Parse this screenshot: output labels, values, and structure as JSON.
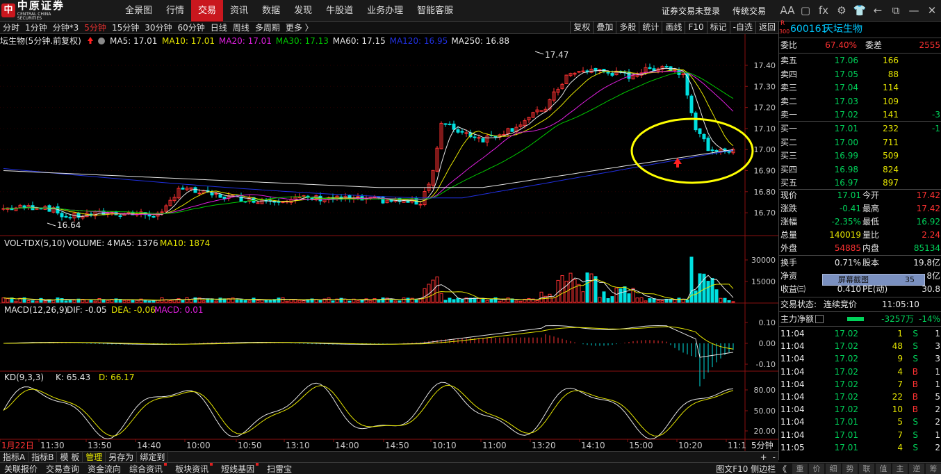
{
  "app": {
    "logo_cn": "中原证券",
    "logo_en": "CENTRAL CHINA SECURITIES",
    "logo_mark": "中"
  },
  "menu": [
    "全景图",
    "行情",
    "交易",
    "资讯",
    "数据",
    "发现",
    "牛股道",
    "业务办理",
    "智能客服"
  ],
  "menu_active": 2,
  "top_right": {
    "login": "证券交易未登录",
    "mode": "传统交易",
    "icons": [
      "font-size-icon",
      "window-icon",
      "fx-icon",
      "gear-icon",
      "shirt-icon",
      "back-icon",
      "restore-icon",
      "minimize-icon",
      "close-icon"
    ],
    "icon_glyphs": [
      "AA",
      "▢",
      "fx",
      "⚙",
      "👕",
      "←",
      "⧉",
      "—",
      "✕"
    ]
  },
  "periods": [
    "分时",
    "1分钟",
    "分钟*3",
    "5分钟",
    "15分钟",
    "30分钟",
    "60分钟",
    "日线",
    "周线",
    "多周期",
    "更多 〉"
  ],
  "period_active": 3,
  "right_tools": [
    "复权",
    "叠加",
    "多股",
    "统计",
    "画线",
    "F10",
    "标记",
    "-自选",
    "返回"
  ],
  "kline": {
    "title": "坛生物(5分钟.前复权)",
    "ma": [
      {
        "t": "MA5: 17.01",
        "c": "#e6e6e6"
      },
      {
        "t": "MA10: 17.01",
        "c": "#e6e600"
      },
      {
        "t": "MA20: 17.01",
        "c": "#e020e0"
      },
      {
        "t": "MA30: 17.13",
        "c": "#00c800"
      },
      {
        "t": "MA60: 17.15",
        "c": "#e6e6e6"
      },
      {
        "t": "MA120: 16.95",
        "c": "#2030e0"
      },
      {
        "t": "MA250: 16.88",
        "c": "#e6e6e6"
      }
    ],
    "y_labels": [
      "17.40",
      "17.30",
      "17.20",
      "17.10",
      "17.00",
      "16.90",
      "16.80",
      "16.70"
    ],
    "max_label": "17.47",
    "min_label": "16.64"
  },
  "volume": {
    "title": "VOL-TDX(5,10)",
    "items": [
      "VOLUME: 4",
      "MA5: 1376",
      "MA10: 1874"
    ],
    "y_labels": [
      "30000",
      "15000"
    ]
  },
  "macd": {
    "title": "MACD(12,26,9)",
    "dif": "DIF: -0.05",
    "dea": "DEA: -0.06",
    "macd": "MACD: 0.01",
    "y_labels": [
      "0.10",
      "0.00",
      "-0.10"
    ]
  },
  "kd": {
    "title": "KD(9,3,3)",
    "k": "K: 65.43",
    "d": "D: 66.17",
    "y_labels": [
      "80.00",
      "50.00",
      "20.00"
    ]
  },
  "time_axis": {
    "labels": [
      "1月22日",
      "11:30",
      "13:50",
      "14:40",
      "10:00",
      "10:50",
      "13:10",
      "14:00",
      "14:50",
      "10:10",
      "11:00",
      "13:20",
      "14:10",
      "15:00",
      "10:20",
      "11:1"
    ],
    "period": "5分钟",
    "zoom": [
      "+",
      "-"
    ]
  },
  "quote": {
    "code": "600161",
    "name": "天坛生物",
    "badge_r": "R",
    "badge_300": "300",
    "weibi_label": "委比",
    "weibi": "67.40%",
    "weicha_label": "委差",
    "weicha": "2555",
    "asks": [
      {
        "l": "卖五",
        "p": "17.06",
        "v": "166",
        "x": ""
      },
      {
        "l": "卖四",
        "p": "17.05",
        "v": "88",
        "x": ""
      },
      {
        "l": "卖三",
        "p": "17.04",
        "v": "114",
        "x": ""
      },
      {
        "l": "卖二",
        "p": "17.03",
        "v": "109",
        "x": ""
      },
      {
        "l": "卖一",
        "p": "17.02",
        "v": "141",
        "x": "-3"
      }
    ],
    "bids": [
      {
        "l": "买一",
        "p": "17.01",
        "v": "232",
        "x": "-1"
      },
      {
        "l": "买二",
        "p": "17.00",
        "v": "711",
        "x": ""
      },
      {
        "l": "买三",
        "p": "16.99",
        "v": "509",
        "x": ""
      },
      {
        "l": "买四",
        "p": "16.98",
        "v": "824",
        "x": ""
      },
      {
        "l": "买五",
        "p": "16.97",
        "v": "897",
        "x": ""
      }
    ],
    "stats": [
      {
        "a": "现价",
        "b": "17.01",
        "c": "今开",
        "d": "17.42"
      },
      {
        "a": "涨跌",
        "b": "-0.41",
        "c": "最高",
        "d": "17.42"
      },
      {
        "a": "涨幅",
        "b": "-2.35%",
        "c": "最低",
        "d": "16.92"
      },
      {
        "a": "总量",
        "b": "140019",
        "c": "量比",
        "d": "2.24"
      },
      {
        "a": "外盘",
        "b": "54885",
        "c": "内盘",
        "d": "85134"
      }
    ],
    "stats2": [
      {
        "a": "换手",
        "b": "0.71%",
        "c": "股本",
        "d": "19.8亿"
      },
      {
        "a": "净资",
        "b": "",
        "c": "",
        "d": "8亿"
      },
      {
        "a": "收益㈢",
        "b": "0.410",
        "c": "PE(动)",
        "d": "30.8"
      }
    ],
    "status_label": "交易状态:",
    "status": "连续竞价",
    "status_time": "11:05:10",
    "flow_label": "主力净额",
    "flow": "-3257万",
    "flow_pct": "-14%",
    "ticks": [
      {
        "t": "11:04",
        "p": "17.02",
        "v": "1",
        "s": "S",
        "n": "1"
      },
      {
        "t": "11:04",
        "p": "17.02",
        "v": "48",
        "s": "S",
        "n": "3"
      },
      {
        "t": "11:04",
        "p": "17.02",
        "v": "9",
        "s": "S",
        "n": "3"
      },
      {
        "t": "11:04",
        "p": "17.02",
        "v": "4",
        "s": "B",
        "n": "1"
      },
      {
        "t": "11:04",
        "p": "17.02",
        "v": "7",
        "s": "B",
        "n": "1"
      },
      {
        "t": "11:04",
        "p": "17.02",
        "v": "22",
        "s": "B",
        "n": "5"
      },
      {
        "t": "11:04",
        "p": "17.02",
        "v": "10",
        "s": "B",
        "n": "2"
      },
      {
        "t": "11:04",
        "p": "17.01",
        "v": "5",
        "s": "S",
        "n": "2"
      },
      {
        "t": "11:04",
        "p": "17.01",
        "v": "7",
        "s": "S",
        "n": "1"
      },
      {
        "t": "11:05",
        "p": "17.01",
        "v": "4",
        "s": "S",
        "n": "2"
      }
    ]
  },
  "popup": {
    "label": "屏幕截图",
    "value": "35"
  },
  "bottom_tabs": [
    "指标A",
    "指标B",
    "模 板",
    "管理",
    "另存为",
    "绑定到"
  ],
  "bottom_active": 3,
  "status_tabs": [
    "关联报价",
    "交易查询",
    "资金流向",
    "综合资讯",
    "板块资讯",
    "短线基因",
    "扫雷宝"
  ],
  "status_right": "图文F10 侧边栏 《",
  "status_squares": [
    "重",
    "价",
    "细",
    "势",
    "联",
    "值",
    "主",
    "逆",
    "筹"
  ],
  "colors": {
    "up": "#ff3232",
    "down": "#00e0e0",
    "accent": "#c9171e",
    "ma5": "#e6e6e6",
    "ma10": "#e6e600",
    "ma20": "#e020e0",
    "ma30": "#00c800",
    "ma120": "#2030e0",
    "highlight": "#ffff00"
  }
}
